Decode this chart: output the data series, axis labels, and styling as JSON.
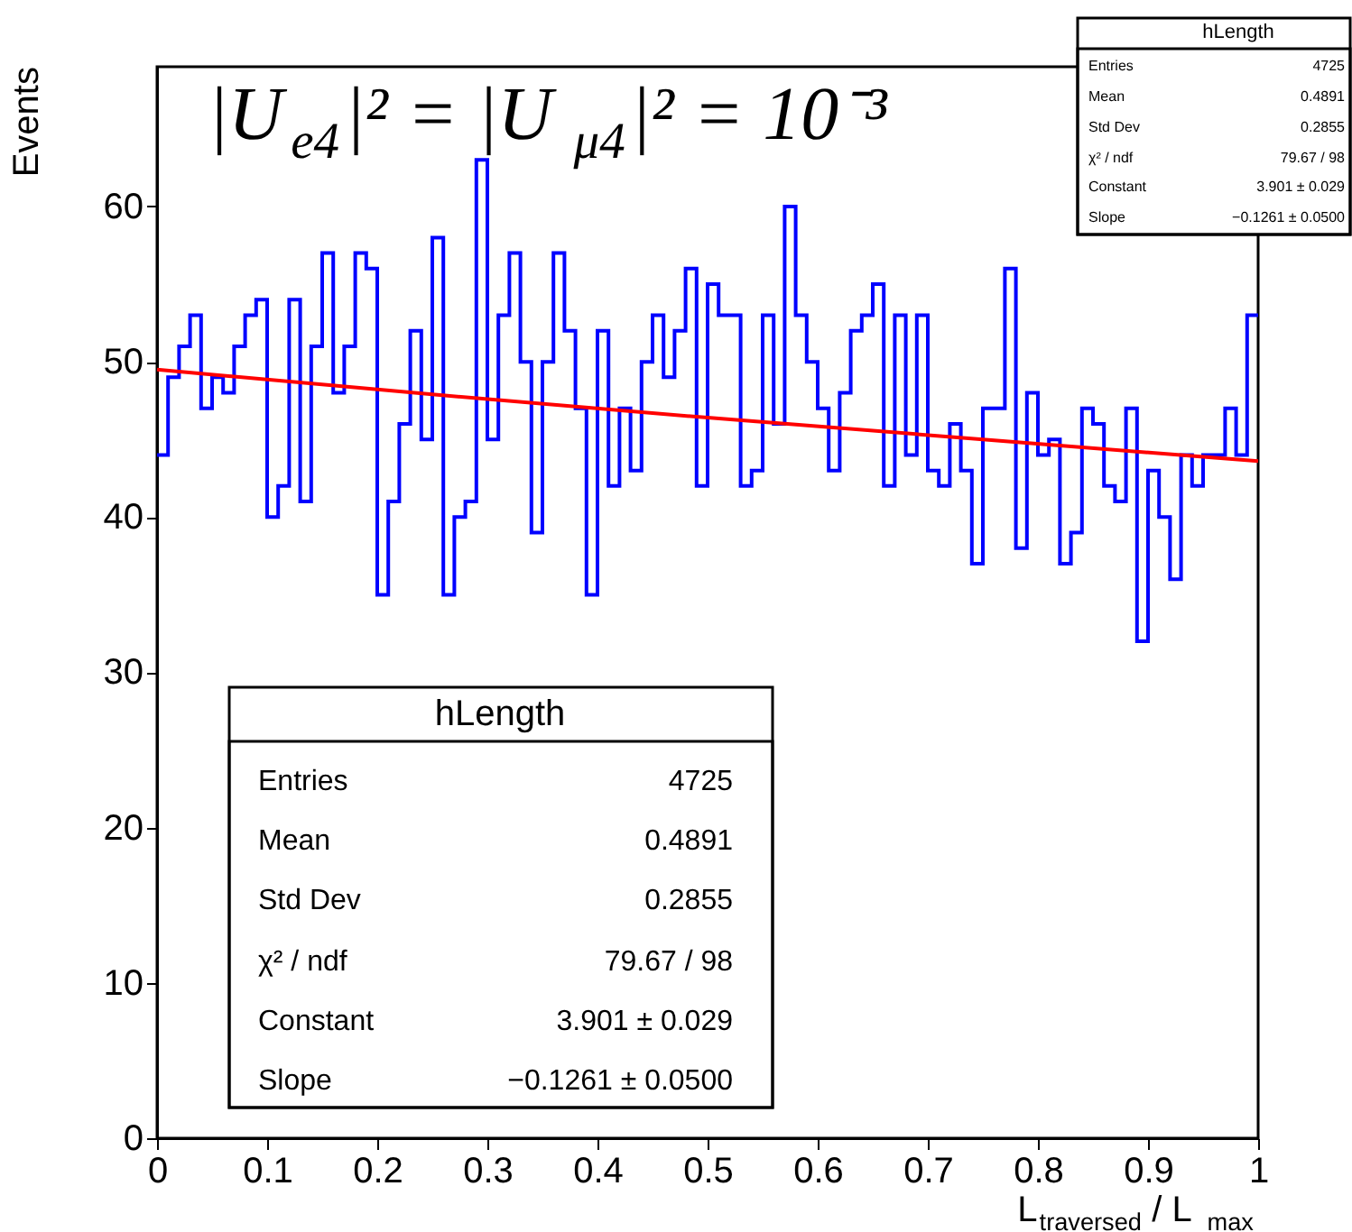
{
  "chart_data": {
    "type": "histogram",
    "bins": [
      0,
      0.01,
      0.02,
      0.03,
      0.04,
      0.05,
      0.06,
      0.07,
      0.08,
      0.09,
      0.1,
      0.11,
      0.12,
      0.13,
      0.14,
      0.15,
      0.16,
      0.17,
      0.18,
      0.19,
      0.2,
      0.21,
      0.22,
      0.23,
      0.24,
      0.25,
      0.26,
      0.27,
      0.28,
      0.29,
      0.3,
      0.31,
      0.32,
      0.33,
      0.34,
      0.35,
      0.36,
      0.37,
      0.38,
      0.39,
      0.4,
      0.41,
      0.42,
      0.43,
      0.44,
      0.45,
      0.46,
      0.47,
      0.48,
      0.49,
      0.5,
      0.51,
      0.52,
      0.53,
      0.54,
      0.55,
      0.56,
      0.57,
      0.58,
      0.59,
      0.6,
      0.61,
      0.62,
      0.63,
      0.64,
      0.65,
      0.66,
      0.67,
      0.68,
      0.69,
      0.7,
      0.71,
      0.72,
      0.73,
      0.74,
      0.75,
      0.76,
      0.77,
      0.78,
      0.79,
      0.8,
      0.81,
      0.82,
      0.83,
      0.84,
      0.85,
      0.86,
      0.87,
      0.88,
      0.89,
      0.9,
      0.91,
      0.92,
      0.93,
      0.94,
      0.95,
      0.96,
      0.97,
      0.98,
      0.99,
      1
    ],
    "series": [
      {
        "type": "histogram",
        "color": "#0000ff",
        "values": [
          44,
          49,
          51,
          53,
          47,
          49,
          48,
          51,
          53,
          54,
          40,
          42,
          54,
          41,
          51,
          57,
          48,
          51,
          57,
          56,
          35,
          41,
          46,
          52,
          45,
          58,
          35,
          40,
          41,
          63,
          45,
          53,
          57,
          50,
          39,
          50,
          57,
          52,
          47,
          35,
          52,
          42,
          47,
          43,
          50,
          53,
          49,
          52,
          56,
          42,
          55,
          53,
          53,
          42,
          43,
          53,
          46,
          60,
          53,
          50,
          47,
          43,
          48,
          52,
          53,
          55,
          42,
          53,
          44,
          53,
          43,
          42,
          46,
          43,
          37,
          47,
          47,
          56,
          38,
          48,
          44,
          45,
          37,
          39,
          47,
          46,
          42,
          41,
          47,
          32,
          43,
          40,
          36,
          44,
          42,
          44,
          44,
          47,
          44,
          53
        ]
      },
      {
        "type": "line",
        "color": "#ff0000",
        "x": [
          0,
          0.25,
          0.5,
          0.75,
          1
        ],
        "values": [
          49.5,
          47.9,
          46.4,
          45.0,
          43.6
        ]
      }
    ],
    "xlabel": "L$_{traversed}$ / L$_{max}$",
    "ylabel": "Events",
    "grid": false,
    "xlim": [
      0,
      1
    ],
    "xticks": [
      0,
      0.1,
      0.2,
      0.3,
      0.4,
      0.5,
      0.6,
      0.7,
      0.8,
      0.9,
      1
    ],
    "ylim": [
      0,
      69
    ],
    "yticks": [
      0,
      10,
      20,
      30,
      40,
      50,
      60
    ],
    "annotations": [
      "|U$_{e4}$|² = |U$_{μ4}$|² = 10⁻³",
      "hLength",
      "Entries",
      "4725",
      "Mean",
      "0.4891",
      "Std Dev",
      "0.2855",
      "χ² / ndf",
      "79.67 / 98",
      "Constant",
      "3.901 ± 0.029",
      "Slope",
      "−0.1261 ± 0.0500",
      "hLength",
      "Entries",
      "4725",
      "Mean",
      "0.4891",
      "Std Dev",
      "0.2855",
      "χ² / ndf",
      "79.67 / 98",
      "Constant",
      "3.901 ± 0.029",
      "Slope",
      "−0.1261 ± 0.0500"
    ]
  }
}
